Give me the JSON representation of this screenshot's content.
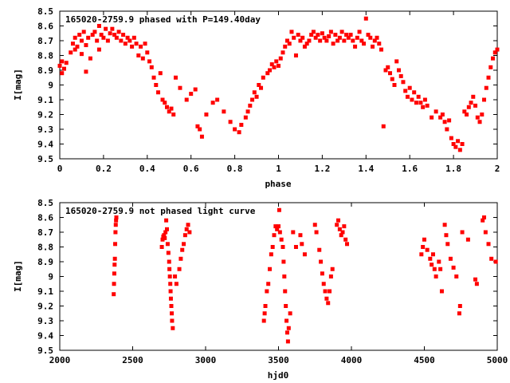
{
  "chart_data": [
    {
      "type": "scatter",
      "title": "165020-2759.9 phased with P=149.40day",
      "xlabel": "phase",
      "ylabel": "I[mag]",
      "xlim": [
        0,
        2
      ],
      "ylim": [
        9.5,
        8.5
      ],
      "y_inverted": true,
      "xticks": [
        "0",
        "0.2",
        "0.4",
        "0.6",
        "0.8",
        "1",
        "1.2",
        "1.4",
        "1.6",
        "1.8",
        "2"
      ],
      "yticks": [
        "8.5",
        "8.6",
        "8.7",
        "8.8",
        "8.9",
        "9",
        "9.1",
        "9.2",
        "9.3",
        "9.4",
        "9.5"
      ],
      "marker_color": "#ff0000",
      "points": [
        [
          0.0,
          8.87
        ],
        [
          0.01,
          8.84
        ],
        [
          0.01,
          8.92
        ],
        [
          0.02,
          8.89
        ],
        [
          0.03,
          8.85
        ],
        [
          0.05,
          8.78
        ],
        [
          0.06,
          8.72
        ],
        [
          0.07,
          8.68
        ],
        [
          0.07,
          8.76
        ],
        [
          0.08,
          8.74
        ],
        [
          0.09,
          8.66
        ],
        [
          0.1,
          8.7
        ],
        [
          0.1,
          8.79
        ],
        [
          0.11,
          8.64
        ],
        [
          0.12,
          8.73
        ],
        [
          0.12,
          8.91
        ],
        [
          0.13,
          8.68
        ],
        [
          0.14,
          8.82
        ],
        [
          0.15,
          8.66
        ],
        [
          0.16,
          8.64
        ],
        [
          0.17,
          8.7
        ],
        [
          0.18,
          8.6
        ],
        [
          0.18,
          8.76
        ],
        [
          0.19,
          8.66
        ],
        [
          0.2,
          8.68
        ],
        [
          0.21,
          8.62
        ],
        [
          0.22,
          8.7
        ],
        [
          0.23,
          8.65
        ],
        [
          0.24,
          8.62
        ],
        [
          0.25,
          8.66
        ],
        [
          0.26,
          8.68
        ],
        [
          0.27,
          8.64
        ],
        [
          0.28,
          8.7
        ],
        [
          0.29,
          8.66
        ],
        [
          0.3,
          8.72
        ],
        [
          0.31,
          8.68
        ],
        [
          0.32,
          8.7
        ],
        [
          0.33,
          8.74
        ],
        [
          0.34,
          8.68
        ],
        [
          0.35,
          8.72
        ],
        [
          0.36,
          8.8
        ],
        [
          0.37,
          8.74
        ],
        [
          0.38,
          8.82
        ],
        [
          0.39,
          8.72
        ],
        [
          0.4,
          8.78
        ],
        [
          0.41,
          8.84
        ],
        [
          0.42,
          8.88
        ],
        [
          0.43,
          8.95
        ],
        [
          0.44,
          9.0
        ],
        [
          0.45,
          9.05
        ],
        [
          0.46,
          8.92
        ],
        [
          0.47,
          9.1
        ],
        [
          0.48,
          9.12
        ],
        [
          0.49,
          9.15
        ],
        [
          0.5,
          9.18
        ],
        [
          0.51,
          9.16
        ],
        [
          0.52,
          9.2
        ],
        [
          0.53,
          8.95
        ],
        [
          0.55,
          9.02
        ],
        [
          0.58,
          9.1
        ],
        [
          0.6,
          9.06
        ],
        [
          0.62,
          9.03
        ],
        [
          0.63,
          9.28
        ],
        [
          0.64,
          9.3
        ],
        [
          0.65,
          9.35
        ],
        [
          0.67,
          9.2
        ],
        [
          0.7,
          9.12
        ],
        [
          0.72,
          9.1
        ],
        [
          0.75,
          9.18
        ],
        [
          0.78,
          9.25
        ],
        [
          0.8,
          9.3
        ],
        [
          0.82,
          9.32
        ],
        [
          0.83,
          9.27
        ],
        [
          0.85,
          9.22
        ],
        [
          0.86,
          9.18
        ],
        [
          0.87,
          9.14
        ],
        [
          0.88,
          9.1
        ],
        [
          0.89,
          9.05
        ],
        [
          0.9,
          9.08
        ],
        [
          0.91,
          9.0
        ],
        [
          0.92,
          9.02
        ],
        [
          0.93,
          8.95
        ],
        [
          0.95,
          8.92
        ],
        [
          0.96,
          8.9
        ],
        [
          0.97,
          8.86
        ],
        [
          0.98,
          8.88
        ],
        [
          0.99,
          8.84
        ],
        [
          1.0,
          8.87
        ],
        [
          1.01,
          8.82
        ],
        [
          1.02,
          8.78
        ],
        [
          1.03,
          8.74
        ],
        [
          1.04,
          8.7
        ],
        [
          1.05,
          8.72
        ],
        [
          1.06,
          8.64
        ],
        [
          1.07,
          8.68
        ],
        [
          1.08,
          8.8
        ],
        [
          1.09,
          8.66
        ],
        [
          1.1,
          8.7
        ],
        [
          1.11,
          8.68
        ],
        [
          1.12,
          8.74
        ],
        [
          1.13,
          8.72
        ],
        [
          1.14,
          8.7
        ],
        [
          1.15,
          8.66
        ],
        [
          1.16,
          8.64
        ],
        [
          1.17,
          8.68
        ],
        [
          1.18,
          8.66
        ],
        [
          1.19,
          8.7
        ],
        [
          1.2,
          8.65
        ],
        [
          1.21,
          8.68
        ],
        [
          1.22,
          8.7
        ],
        [
          1.23,
          8.67
        ],
        [
          1.24,
          8.64
        ],
        [
          1.25,
          8.72
        ],
        [
          1.26,
          8.66
        ],
        [
          1.27,
          8.7
        ],
        [
          1.28,
          8.68
        ],
        [
          1.29,
          8.64
        ],
        [
          1.3,
          8.7
        ],
        [
          1.31,
          8.66
        ],
        [
          1.32,
          8.68
        ],
        [
          1.33,
          8.66
        ],
        [
          1.34,
          8.7
        ],
        [
          1.35,
          8.74
        ],
        [
          1.36,
          8.68
        ],
        [
          1.37,
          8.64
        ],
        [
          1.38,
          8.7
        ],
        [
          1.39,
          8.72
        ],
        [
          1.4,
          8.55
        ],
        [
          1.41,
          8.66
        ],
        [
          1.42,
          8.68
        ],
        [
          1.43,
          8.74
        ],
        [
          1.44,
          8.7
        ],
        [
          1.45,
          8.68
        ],
        [
          1.46,
          8.72
        ],
        [
          1.47,
          8.76
        ],
        [
          1.48,
          9.28
        ],
        [
          1.49,
          8.9
        ],
        [
          1.5,
          8.88
        ],
        [
          1.51,
          8.92
        ],
        [
          1.52,
          8.96
        ],
        [
          1.53,
          9.0
        ],
        [
          1.54,
          8.84
        ],
        [
          1.55,
          8.9
        ],
        [
          1.56,
          8.94
        ],
        [
          1.57,
          8.98
        ],
        [
          1.58,
          9.04
        ],
        [
          1.59,
          9.08
        ],
        [
          1.6,
          9.02
        ],
        [
          1.61,
          9.1
        ],
        [
          1.62,
          9.05
        ],
        [
          1.63,
          9.12
        ],
        [
          1.64,
          9.08
        ],
        [
          1.65,
          9.12
        ],
        [
          1.66,
          9.15
        ],
        [
          1.67,
          9.1
        ],
        [
          1.68,
          9.14
        ],
        [
          1.7,
          9.22
        ],
        [
          1.72,
          9.18
        ],
        [
          1.74,
          9.22
        ],
        [
          1.75,
          9.2
        ],
        [
          1.76,
          9.25
        ],
        [
          1.77,
          9.3
        ],
        [
          1.78,
          9.24
        ],
        [
          1.79,
          9.36
        ],
        [
          1.8,
          9.4
        ],
        [
          1.81,
          9.42
        ],
        [
          1.82,
          9.38
        ],
        [
          1.83,
          9.44
        ],
        [
          1.84,
          9.4
        ],
        [
          1.85,
          9.18
        ],
        [
          1.86,
          9.2
        ],
        [
          1.87,
          9.15
        ],
        [
          1.88,
          9.12
        ],
        [
          1.89,
          9.08
        ],
        [
          1.9,
          9.14
        ],
        [
          1.91,
          9.22
        ],
        [
          1.92,
          9.25
        ],
        [
          1.93,
          9.2
        ],
        [
          1.94,
          9.1
        ],
        [
          1.95,
          9.02
        ],
        [
          1.96,
          8.95
        ],
        [
          1.97,
          8.88
        ],
        [
          1.98,
          8.82
        ],
        [
          1.99,
          8.78
        ],
        [
          2.0,
          8.76
        ]
      ]
    },
    {
      "type": "scatter",
      "title": "165020-2759.9 not phased light curve",
      "xlabel": "hjd0",
      "ylabel": "I[mag]",
      "xlim": [
        2000,
        5000
      ],
      "ylim": [
        9.5,
        8.5
      ],
      "y_inverted": true,
      "xticks": [
        "2000",
        "2500",
        "3000",
        "3500",
        "4000",
        "4500",
        "5000"
      ],
      "yticks": [
        "8.5",
        "8.6",
        "8.7",
        "8.8",
        "8.9",
        "9",
        "9.1",
        "9.2",
        "9.3",
        "9.4",
        "9.5"
      ],
      "marker_color": "#ff0000",
      "points": [
        [
          2370,
          9.12
        ],
        [
          2372,
          9.05
        ],
        [
          2374,
          8.98
        ],
        [
          2376,
          8.92
        ],
        [
          2378,
          8.88
        ],
        [
          2380,
          8.78
        ],
        [
          2382,
          8.7
        ],
        [
          2384,
          8.65
        ],
        [
          2386,
          8.62
        ],
        [
          2388,
          8.6
        ],
        [
          2700,
          8.8
        ],
        [
          2705,
          8.75
        ],
        [
          2710,
          8.73
        ],
        [
          2715,
          8.72
        ],
        [
          2720,
          8.74
        ],
        [
          2725,
          8.7
        ],
        [
          2730,
          8.62
        ],
        [
          2735,
          8.68
        ],
        [
          2740,
          8.78
        ],
        [
          2745,
          8.84
        ],
        [
          2750,
          8.9
        ],
        [
          2752,
          8.95
        ],
        [
          2755,
          9.0
        ],
        [
          2758,
          9.05
        ],
        [
          2760,
          9.1
        ],
        [
          2762,
          9.15
        ],
        [
          2765,
          9.2
        ],
        [
          2768,
          9.25
        ],
        [
          2770,
          9.3
        ],
        [
          2775,
          9.35
        ],
        [
          2790,
          9.0
        ],
        [
          2800,
          9.05
        ],
        [
          2820,
          8.95
        ],
        [
          2830,
          8.88
        ],
        [
          2840,
          8.82
        ],
        [
          2850,
          8.78
        ],
        [
          2860,
          8.72
        ],
        [
          2870,
          8.68
        ],
        [
          2880,
          8.65
        ],
        [
          2890,
          8.7
        ],
        [
          3400,
          9.3
        ],
        [
          3405,
          9.25
        ],
        [
          3410,
          9.2
        ],
        [
          3420,
          9.1
        ],
        [
          3430,
          9.05
        ],
        [
          3440,
          8.95
        ],
        [
          3450,
          8.85
        ],
        [
          3460,
          8.8
        ],
        [
          3470,
          8.72
        ],
        [
          3480,
          8.66
        ],
        [
          3490,
          8.68
        ],
        [
          3500,
          8.66
        ],
        [
          3505,
          8.55
        ],
        [
          3510,
          8.7
        ],
        [
          3520,
          8.75
        ],
        [
          3530,
          8.8
        ],
        [
          3535,
          8.9
        ],
        [
          3540,
          9.0
        ],
        [
          3545,
          9.1
        ],
        [
          3550,
          9.2
        ],
        [
          3555,
          9.3
        ],
        [
          3560,
          9.38
        ],
        [
          3565,
          9.44
        ],
        [
          3570,
          9.35
        ],
        [
          3580,
          9.25
        ],
        [
          3600,
          8.7
        ],
        [
          3620,
          8.8
        ],
        [
          3650,
          8.72
        ],
        [
          3660,
          8.78
        ],
        [
          3680,
          8.85
        ],
        [
          3750,
          8.65
        ],
        [
          3760,
          8.7
        ],
        [
          3780,
          8.82
        ],
        [
          3790,
          8.9
        ],
        [
          3800,
          8.98
        ],
        [
          3810,
          9.05
        ],
        [
          3820,
          9.1
        ],
        [
          3830,
          9.15
        ],
        [
          3840,
          9.18
        ],
        [
          3850,
          9.1
        ],
        [
          3860,
          9.0
        ],
        [
          3870,
          8.95
        ],
        [
          3900,
          8.65
        ],
        [
          3910,
          8.62
        ],
        [
          3920,
          8.68
        ],
        [
          3930,
          8.72
        ],
        [
          3940,
          8.7
        ],
        [
          3950,
          8.66
        ],
        [
          3960,
          8.75
        ],
        [
          3970,
          8.78
        ],
        [
          4480,
          8.85
        ],
        [
          4490,
          8.8
        ],
        [
          4500,
          8.75
        ],
        [
          4520,
          8.82
        ],
        [
          4540,
          8.88
        ],
        [
          4550,
          8.92
        ],
        [
          4560,
          8.85
        ],
        [
          4570,
          8.95
        ],
        [
          4580,
          9.0
        ],
        [
          4600,
          8.9
        ],
        [
          4610,
          8.95
        ],
        [
          4620,
          9.1
        ],
        [
          4640,
          8.65
        ],
        [
          4650,
          8.72
        ],
        [
          4660,
          8.78
        ],
        [
          4680,
          8.88
        ],
        [
          4700,
          8.94
        ],
        [
          4720,
          9.0
        ],
        [
          4740,
          9.25
        ],
        [
          4745,
          9.2
        ],
        [
          4760,
          8.7
        ],
        [
          4800,
          8.75
        ],
        [
          4850,
          9.02
        ],
        [
          4860,
          9.05
        ],
        [
          4900,
          8.62
        ],
        [
          4910,
          8.6
        ],
        [
          4920,
          8.7
        ],
        [
          4940,
          8.78
        ],
        [
          4960,
          8.88
        ],
        [
          4990,
          8.9
        ]
      ]
    }
  ]
}
